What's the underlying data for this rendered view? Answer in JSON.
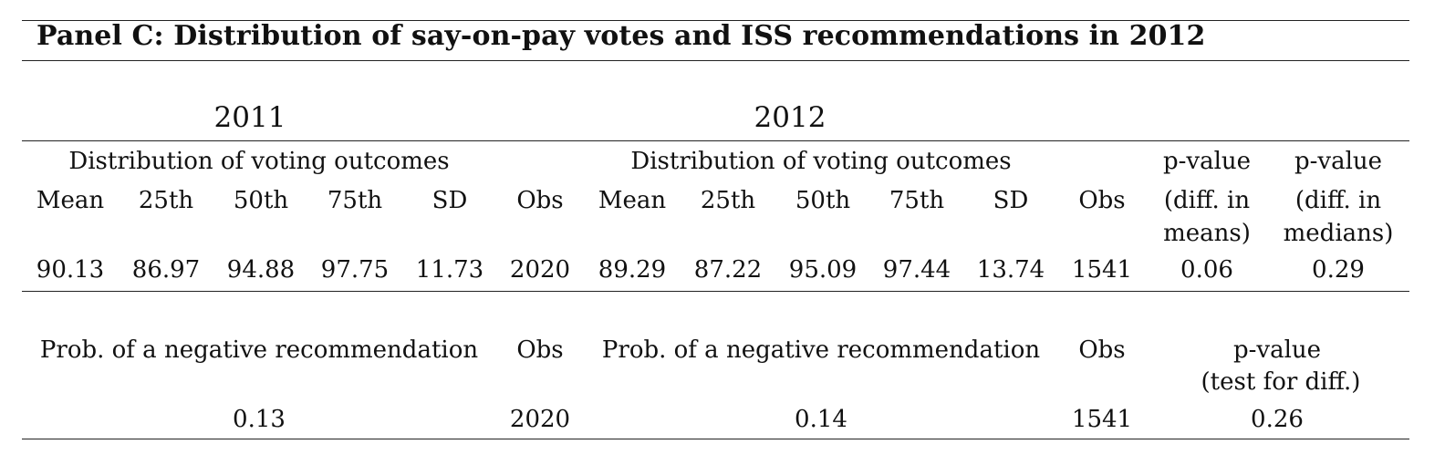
{
  "title": "Panel C: Distribution of say-on-pay votes and ISS recommendations in 2012",
  "years": {
    "y2011": "2011",
    "y2012": "2012"
  },
  "section1": {
    "group_header": "Distribution of voting outcomes",
    "stat_headers": [
      "Mean",
      "25th",
      "50th",
      "75th",
      "SD"
    ],
    "obs_header": "Obs",
    "pvalue_means": {
      "line1": "p-value",
      "line2": "(diff. in",
      "line3": "means)"
    },
    "pvalue_medians": {
      "line1": "p-value",
      "line2": "(diff. in",
      "line3": "medians)"
    },
    "values_2011": [
      "90.13",
      "86.97",
      "94.88",
      "97.75",
      "11.73"
    ],
    "obs_2011": "2020",
    "values_2012": [
      "89.29",
      "87.22",
      "95.09",
      "97.44",
      "13.74"
    ],
    "obs_2012": "1541",
    "pvalue_means_value": "0.06",
    "pvalue_medians_value": "0.29"
  },
  "section2": {
    "prob_header": "Prob. of a negative recommendation",
    "obs_header": "Obs",
    "pvalue": {
      "line1": "p-value",
      "line2": "(test for diff.)"
    },
    "prob_2011": "0.13",
    "obs_2011": "2020",
    "prob_2012": "0.14",
    "obs_2012": "1541",
    "pvalue_value": "0.26"
  }
}
